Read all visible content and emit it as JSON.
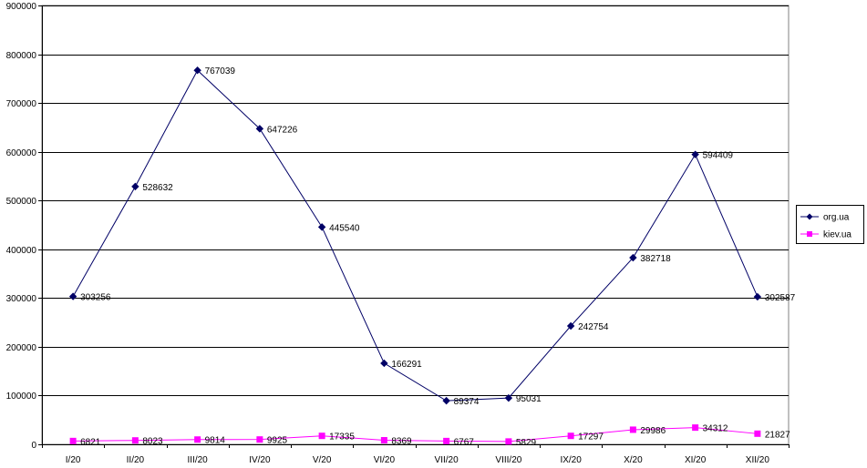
{
  "chart_data": {
    "type": "line",
    "title": "",
    "xlabel": "",
    "ylabel": "",
    "categories": [
      "I/20",
      "II/20",
      "III/20",
      "IV/20",
      "V/20",
      "VI/20",
      "VII/20",
      "VIII/20",
      "IX/20",
      "X/20",
      "XI/20",
      "XII/20"
    ],
    "ylim": [
      0,
      900000
    ],
    "yticks": [
      0,
      100000,
      200000,
      300000,
      400000,
      500000,
      600000,
      700000,
      800000,
      900000
    ],
    "grid": "horizontal",
    "legend_position": "right",
    "series": [
      {
        "name": "org.ua",
        "color": "#000066",
        "marker": "diamond",
        "values": [
          303256,
          528632,
          767039,
          647226,
          445540,
          166291,
          89374,
          95031,
          242754,
          382718,
          594409,
          302587
        ]
      },
      {
        "name": "kiev.ua",
        "color": "#ff00ff",
        "marker": "square",
        "values": [
          6821,
          8023,
          9814,
          9925,
          17335,
          8369,
          6767,
          5829,
          17297,
          29986,
          34312,
          21827
        ]
      }
    ]
  }
}
